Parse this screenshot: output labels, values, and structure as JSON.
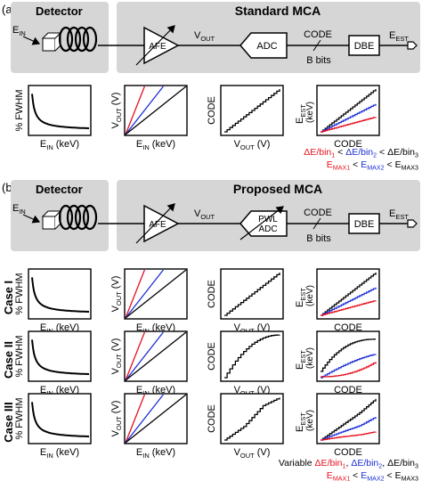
{
  "panels": [
    {
      "tag": "(a)",
      "detector_title": "Detector",
      "mca_title": "Standard MCA",
      "ein": "E",
      "ein_sub": "IN",
      "afe": "AFE",
      "vout": "V",
      "vout_sub": "OUT",
      "adc": "ADC",
      "code": "CODE",
      "bbits": "B bits",
      "dbe": "DBE",
      "eest": "E",
      "eest_sub": "EST",
      "plots": {
        "fwhm": {
          "ylabel": "% FWHM",
          "xlabel": "E",
          "xlabel_sub": "IN",
          "xlabel_tail": " (keV)"
        },
        "vout": {
          "ylabel": "V",
          "ylabel_sub": "OUT",
          "ylabel_tail": " (V)",
          "xlabel": "E",
          "xlabel_sub": "IN",
          "xlabel_tail": " (keV)"
        },
        "code": {
          "ylabel": "CODE",
          "xlabel": "V",
          "xlabel_sub": "OUT",
          "xlabel_tail": " (V)"
        },
        "eest": {
          "ylabel": "E",
          "ylabel_sub": "EST",
          "ylabel_tail": "(keV)",
          "xlabel": "CODE"
        }
      },
      "legend_line1": [
        "ΔE/bin",
        "1",
        " < ",
        "ΔE/bin",
        "2",
        " < ",
        "ΔE/bin",
        "3"
      ],
      "legend_line2": [
        "E",
        "MAX1",
        " < ",
        "E",
        "MAX2",
        " < ",
        "E",
        "MAX3"
      ]
    },
    {
      "tag": "(b)",
      "detector_title": "Detector",
      "mca_title": "Proposed MCA",
      "ein": "E",
      "ein_sub": "IN",
      "afe": "AFE",
      "vout": "V",
      "vout_sub": "OUT",
      "adc_line1": "PWL",
      "adc_line2": "ADC",
      "code": "CODE",
      "bbits": "B bits",
      "dbe": "DBE",
      "eest": "E",
      "eest_sub": "EST"
    }
  ],
  "cases": [
    "Case I",
    "Case II",
    "Case III"
  ],
  "case_plots": {
    "fwhm": {
      "ylabel": "% FWHM",
      "xlabel": "E",
      "xlabel_sub": "IN",
      "xlabel_tail": " (keV)"
    },
    "vout": {
      "ylabel": "V",
      "ylabel_sub": "OUT",
      "ylabel_tail": " (V)",
      "xlabel": "E",
      "xlabel_sub": "IN",
      "xlabel_tail": " (keV)"
    },
    "code": {
      "ylabel": "CODE",
      "xlabel": "V",
      "xlabel_sub": "OUT",
      "xlabel_tail": " (V)"
    },
    "eest": {
      "ylabel": "E",
      "ylabel_sub": "EST",
      "ylabel_tail": "(keV)",
      "xlabel": "CODE"
    }
  },
  "bottom_legend_line1": [
    "Variable ",
    "ΔE/bin",
    "1",
    ", ",
    "ΔE/bin",
    "2",
    ", ",
    "ΔE/bin",
    "3"
  ],
  "bottom_legend_line2": [
    "E",
    "MAX1",
    " < ",
    "E",
    "MAX2",
    " < ",
    "E",
    "MAX3"
  ],
  "colors": {
    "series1": "#e8101e",
    "series2": "#1c2fd6",
    "series3": "#000000",
    "shade": "#d6d6d6",
    "box": "#ffffff"
  }
}
